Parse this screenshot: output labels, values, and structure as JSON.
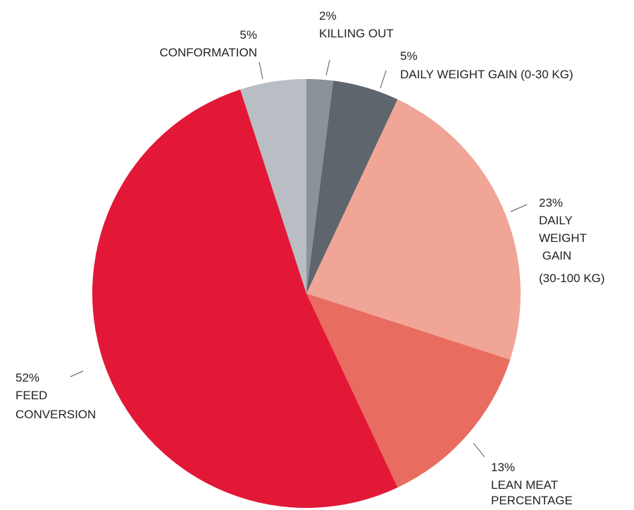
{
  "chart_data": {
    "type": "pie",
    "categories": [
      [
        "KILLING OUT"
      ],
      [
        "DAILY WEIGHT GAIN (0-30 KG)"
      ],
      [
        "DAILY",
        "WEIGHT",
        " GAIN",
        "(30-100 KG)"
      ],
      [
        "LEAN MEAT",
        "PERCENTAGE"
      ],
      [
        "FEED",
        "CONVERSION"
      ],
      [
        "CONFORMATION"
      ]
    ],
    "values": [
      2,
      5,
      23,
      13,
      52,
      5
    ],
    "value_labels": [
      "2%",
      "5%",
      "23%",
      "13%",
      "52%",
      "5%"
    ],
    "colors": [
      "#8b9299",
      "#5e656c",
      "#f0a596",
      "#e86c60",
      "#e31837",
      "#b9bec4"
    ]
  }
}
